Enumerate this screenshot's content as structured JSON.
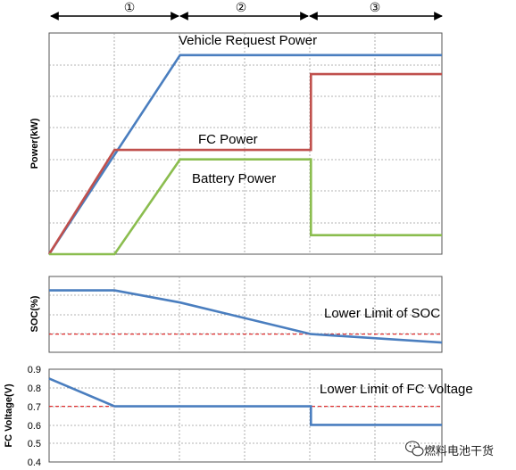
{
  "phases": [
    "①",
    "②",
    "③"
  ],
  "watermark": "燃料电池干货",
  "colors": {
    "vehicle": "#4a7ebf",
    "fc": "#c0504d",
    "battery": "#8bbd4f",
    "soc": "#4a7ebf",
    "fcv": "#4a7ebf",
    "limit": "#e03030"
  },
  "chart_data": [
    {
      "type": "line",
      "ylabel": "Power(kW)",
      "x": [
        0,
        1,
        2,
        3,
        4,
        5,
        6
      ],
      "series": [
        {
          "key": "vehicle",
          "name": "Vehicle Request Power",
          "points": [
            [
              0,
              0
            ],
            [
              2,
              6.3
            ],
            [
              6,
              6.3
            ]
          ]
        },
        {
          "key": "fc",
          "name": "FC Power",
          "points": [
            [
              0,
              0
            ],
            [
              1,
              3.3
            ],
            [
              4,
              3.3
            ],
            [
              4,
              5.7
            ],
            [
              6,
              5.7
            ]
          ]
        },
        {
          "key": "battery",
          "name": "Battery Power",
          "points": [
            [
              0,
              0
            ],
            [
              1,
              0
            ],
            [
              2,
              3.0
            ],
            [
              4,
              3.0
            ],
            [
              4,
              0.6
            ],
            [
              6,
              0.6
            ]
          ]
        }
      ],
      "ylim": [
        0,
        7
      ]
    },
    {
      "type": "line",
      "ylabel": "SOC(%)",
      "annotation": "Lower Limit of SOC",
      "series": [
        {
          "key": "soc",
          "points": [
            [
              0,
              0.82
            ],
            [
              1,
              0.82
            ],
            [
              2,
              0.62
            ],
            [
              4,
              0.1
            ],
            [
              6,
              -0.04
            ]
          ]
        }
      ],
      "limit": 0.1,
      "ylim": [
        -0.2,
        1.05
      ]
    },
    {
      "type": "line",
      "ylabel": "FC Voltage(V)",
      "annotation": "Lower Limit of FC Voltage",
      "yticks": [
        "0.9",
        "0.8",
        "0.7",
        "0.6",
        "0.5",
        "0.4"
      ],
      "series": [
        {
          "key": "fcv",
          "points": [
            [
              0,
              0.85
            ],
            [
              1,
              0.7
            ],
            [
              4,
              0.7
            ],
            [
              4,
              0.6
            ],
            [
              6,
              0.6
            ]
          ]
        }
      ],
      "limit": 0.7,
      "ylim": [
        0.4,
        0.9
      ]
    }
  ]
}
